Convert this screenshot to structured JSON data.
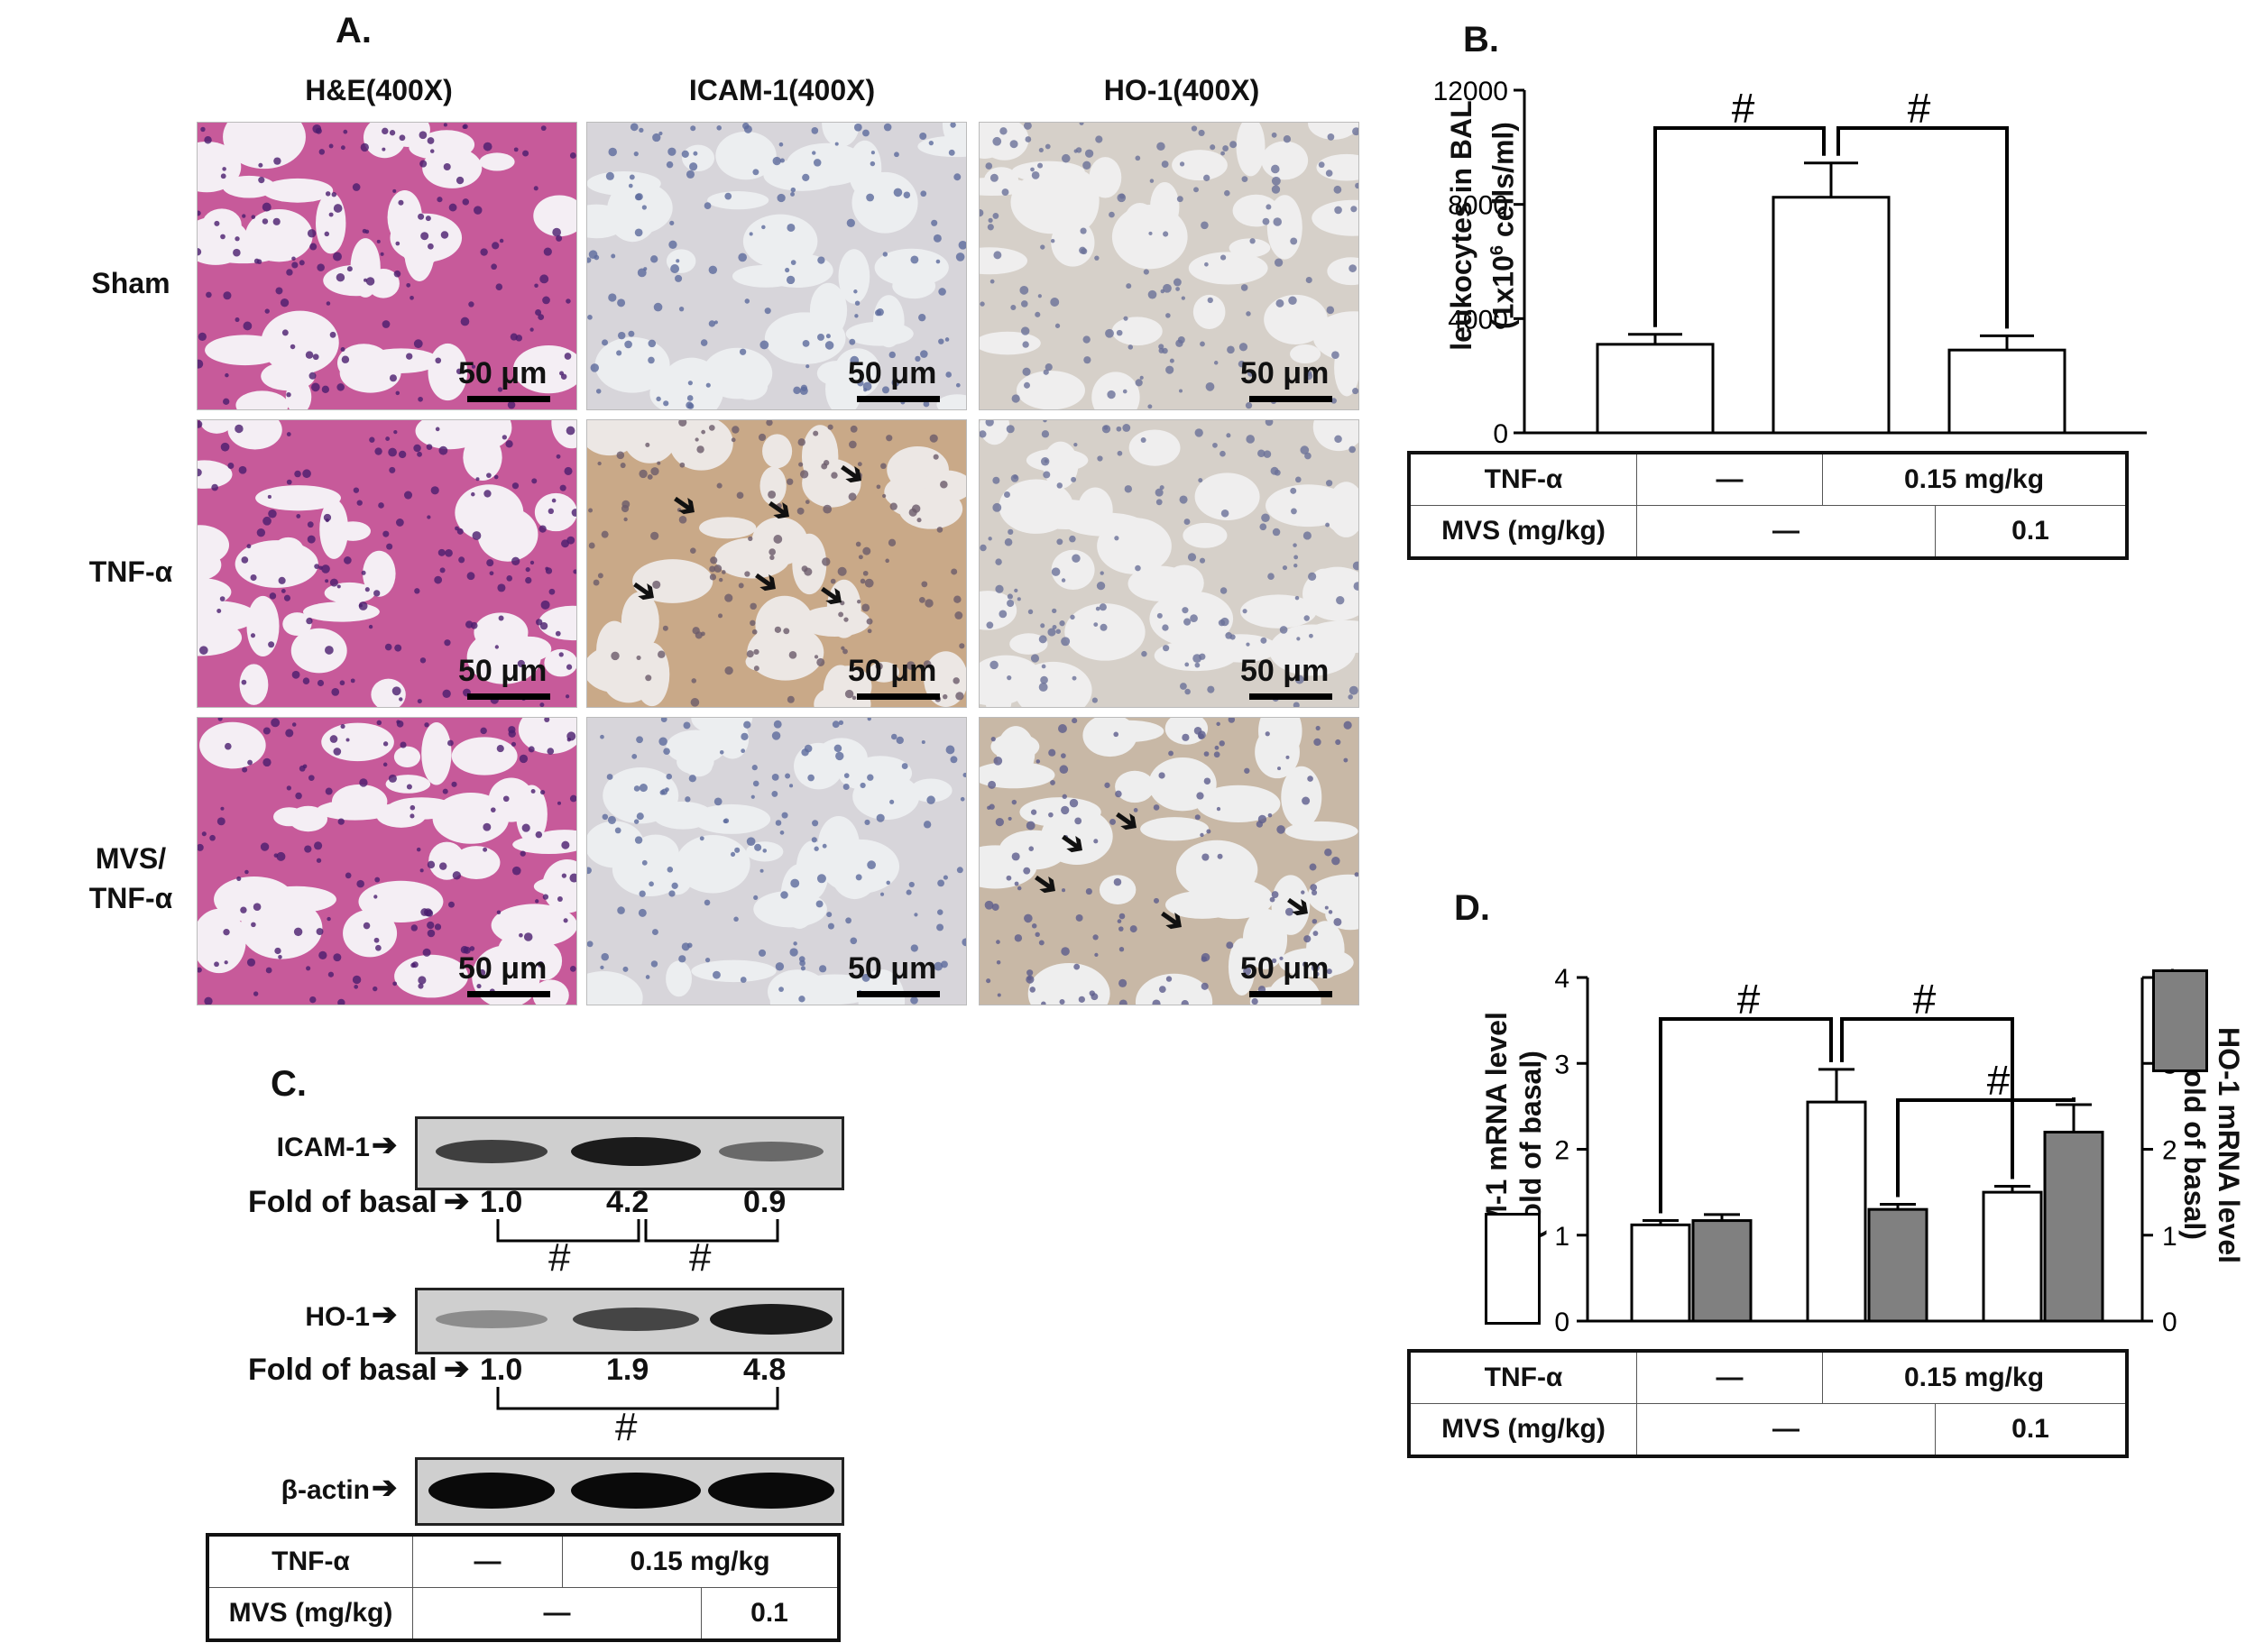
{
  "panel_a": {
    "letter": "A.",
    "columns": [
      "H&E(400X)",
      "ICAM-1(400X)",
      "HO-1(400X)"
    ],
    "rows": [
      "Sham",
      "TNF-α",
      "MVS/\nTNF-α"
    ],
    "scale_label": "50 μm"
  },
  "panel_b": {
    "letter": "B.",
    "ylabel_line1": "leukocytes in BAL",
    "ylabel_line2": "(1x10",
    "ylabel_sup": "6",
    "ylabel_line2_end": " cells/ml)",
    "sig_mark": "#"
  },
  "panel_c": {
    "letter": "C.",
    "icam_label": "ICAM-1",
    "ho_label": "HO-1",
    "actin_label": "β-actin",
    "fold_label": "Fold of basal",
    "icam_folds": [
      "1.0",
      "4.2",
      "0.9"
    ],
    "ho_folds": [
      "1.0",
      "1.9",
      "4.8"
    ],
    "sig_mark": "#"
  },
  "panel_d": {
    "letter": "D.",
    "ylabel_left_1": "ICAM-1 mRNA level",
    "ylabel_left_2": "(fold of basal)",
    "ylabel_right_1": "HO-1 mRNA level",
    "ylabel_right_2": "(fold of basal)",
    "sig_mark": "#"
  },
  "conditions": {
    "tnf_label": "TNF-α",
    "mvs_label": "MVS (mg/kg)",
    "tnf_dose": "0.15 mg/kg",
    "mvs_dose": "0.1",
    "dash": "—"
  },
  "chart_data": [
    {
      "type": "bar",
      "panel": "B",
      "categories": [
        "Sham",
        "TNF-α",
        "MVS/TNF-α"
      ],
      "values": [
        3100,
        8250,
        2900
      ],
      "errors": [
        350,
        1200,
        500
      ],
      "ylabel": "leukocytes in BAL (1x10^6 cells/ml)",
      "ylim": [
        0,
        12000
      ],
      "yticks": [
        "0",
        "4000",
        "8000",
        "12000"
      ]
    },
    {
      "type": "bar",
      "panel": "D",
      "categories": [
        "Sham",
        "TNF-α",
        "MVS/TNF-α"
      ],
      "series": [
        {
          "name": "ICAM-1",
          "values": [
            1.12,
            2.55,
            1.5
          ],
          "errors": [
            0.05,
            0.38,
            0.07
          ],
          "color": "#ffffff"
        },
        {
          "name": "HO-1",
          "values": [
            1.17,
            1.3,
            2.2
          ],
          "errors": [
            0.07,
            0.06,
            0.32
          ],
          "color": "#808080"
        }
      ],
      "ylim": [
        0,
        4
      ],
      "yticks": [
        "0",
        "1",
        "2",
        "3",
        "4"
      ]
    }
  ]
}
